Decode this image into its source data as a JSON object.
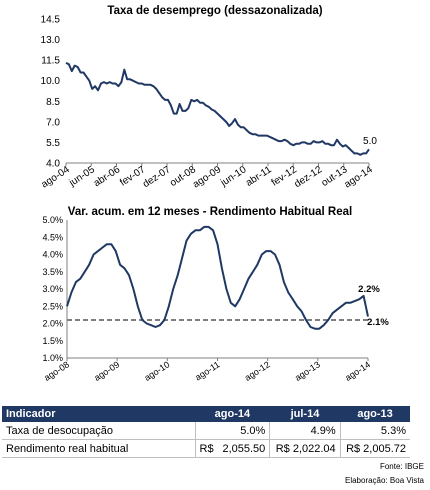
{
  "chart_data": [
    {
      "type": "line",
      "title": "Taxa de desemprego (dessazonalizada)",
      "ylim": [
        4.0,
        14.5
      ],
      "yticks": [
        "4.0",
        "5.5",
        "7.0",
        "8.5",
        "10.0",
        "11.5",
        "13.0",
        "14.5"
      ],
      "xticks": [
        "ago-04",
        "jun-05",
        "abr-06",
        "fev-07",
        "dez-07",
        "out-08",
        "ago-09",
        "jun-10",
        "abr-11",
        "fev-12",
        "dez-12",
        "out-13",
        "ago-14"
      ],
      "end_label": "5.0",
      "color": "#1f3864",
      "series": [
        {
          "values": [
            11.3,
            11.2,
            10.7,
            11.1,
            11.0,
            10.6,
            10.6,
            10.3,
            10.0,
            9.4,
            9.6,
            9.3,
            9.8,
            9.9,
            9.8,
            9.9,
            9.8,
            9.8,
            9.6,
            9.9,
            10.8,
            10.1,
            10.1,
            10.0,
            9.9,
            9.8,
            9.8,
            9.7,
            9.7,
            9.7,
            9.6,
            9.4,
            9.1,
            8.8,
            8.6,
            8.6,
            8.2,
            7.6,
            7.6,
            8.3,
            7.8,
            7.8,
            8.0,
            8.6,
            8.5,
            8.6,
            8.4,
            8.4,
            8.2,
            8.1,
            7.9,
            7.8,
            7.6,
            7.4,
            7.2,
            7.0,
            6.7,
            6.9,
            7.2,
            6.8,
            6.6,
            6.6,
            6.4,
            6.2,
            6.1,
            6.1,
            6.0,
            6.0,
            6.0,
            6.0,
            5.9,
            5.8,
            5.7,
            5.6,
            5.6,
            5.7,
            5.6,
            5.4,
            5.3,
            5.4,
            5.4,
            5.5,
            5.5,
            5.4,
            5.4,
            5.6,
            5.5,
            5.5,
            5.6,
            5.4,
            5.4,
            5.3,
            5.3,
            5.7,
            5.4,
            5.2,
            5.3,
            5.1,
            4.9,
            4.7,
            4.7,
            4.6,
            4.7,
            4.7,
            5.0
          ]
        }
      ]
    },
    {
      "type": "line",
      "title": "Var. acum. em 12 meses - Rendimento Habitual Real",
      "ylim": [
        1.0,
        5.0
      ],
      "yticks": [
        "1.0%",
        "1.5%",
        "2.0%",
        "2.5%",
        "3.0%",
        "3.5%",
        "4.0%",
        "4.5%",
        "5.0%"
      ],
      "xticks": [
        "ago-08",
        "ago-09",
        "ago-10",
        "ago-11",
        "ago-12",
        "ago-13",
        "ago-14"
      ],
      "end_label": "2.2%",
      "reference_value": 2.1,
      "reference_label": "2.1%",
      "color": "#1f3864",
      "reference_color": "#7f7f7f",
      "series": [
        {
          "values": [
            2.5,
            2.9,
            3.2,
            3.3,
            3.5,
            3.7,
            4.0,
            4.1,
            4.2,
            4.3,
            4.3,
            4.1,
            3.7,
            3.6,
            3.4,
            3.0,
            2.5,
            2.1,
            2.0,
            1.95,
            1.9,
            1.95,
            2.1,
            2.5,
            3.0,
            3.4,
            3.9,
            4.4,
            4.6,
            4.7,
            4.7,
            4.8,
            4.8,
            4.7,
            4.3,
            3.6,
            3.0,
            2.6,
            2.5,
            2.7,
            3.0,
            3.3,
            3.5,
            3.7,
            4.0,
            4.1,
            4.1,
            4.0,
            3.7,
            3.2,
            2.9,
            2.7,
            2.5,
            2.35,
            2.1,
            1.9,
            1.85,
            1.85,
            1.95,
            2.1,
            2.3,
            2.4,
            2.5,
            2.6,
            2.6,
            2.65,
            2.7,
            2.8,
            2.2
          ]
        }
      ]
    }
  ],
  "table": {
    "header": [
      "Indicador",
      "ago-14",
      "jul-14",
      "ago-13"
    ],
    "rows": [
      {
        "label": "Taxa de desocupação",
        "c1": "5.0%",
        "c2": "4.9%",
        "c3": "5.3%"
      },
      {
        "label": "Rendimento real habitual",
        "cur": "R$",
        "c1": "2,055.50",
        "c2": "R$ 2,022.04",
        "c3": "R$ 2,005.72"
      }
    ]
  },
  "source": "Fonte: IBGE",
  "credit": "Elaboração: Boa Vista"
}
